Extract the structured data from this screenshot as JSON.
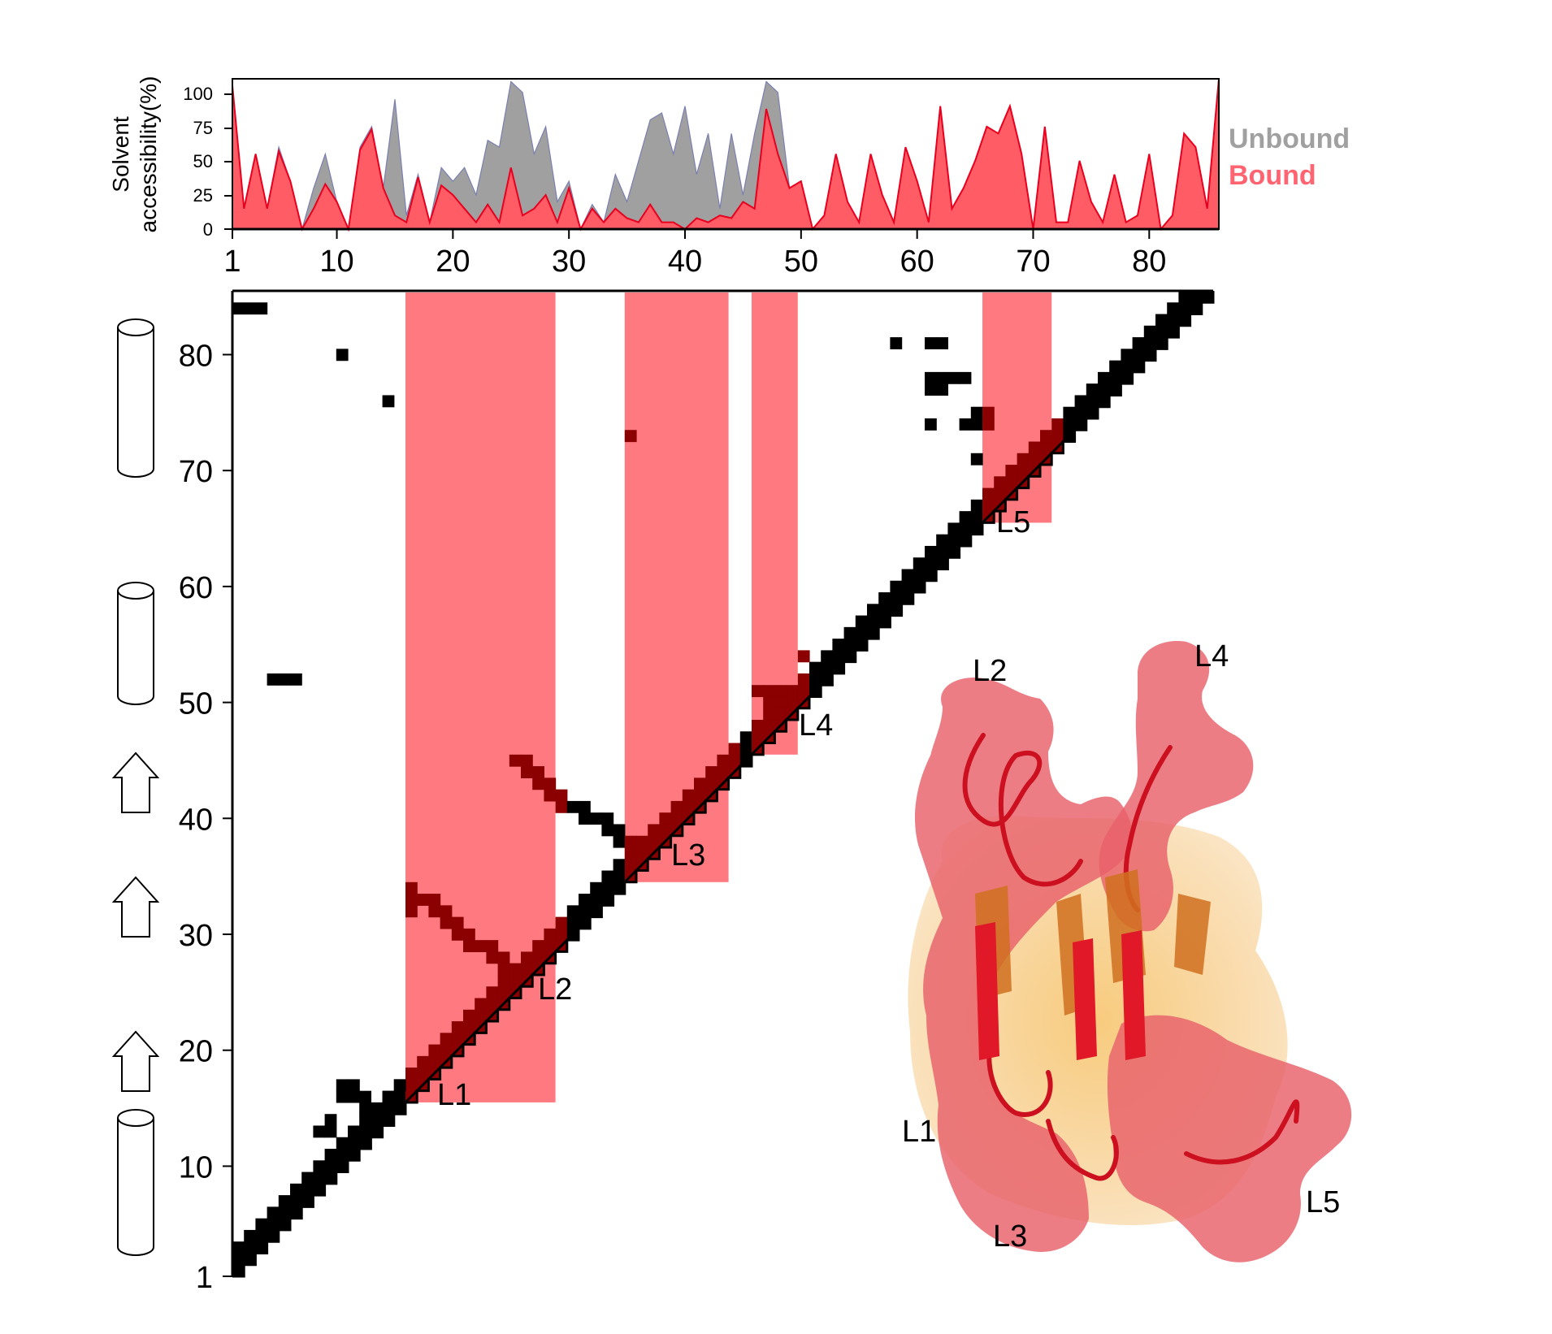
{
  "accessibility_panel": {
    "ylabel_line1": "Solvent",
    "ylabel_line2": "accessibility(%)",
    "yticks": [
      "100",
      "75",
      "50",
      "25",
      "0"
    ],
    "xticks": [
      "1",
      "10",
      "20",
      "30",
      "40",
      "50",
      "60",
      "70",
      "80"
    ],
    "legend": [
      {
        "label": "Unbound",
        "color": "#a0a0a0"
      },
      {
        "label": "Bound",
        "color": "#ff6470"
      }
    ]
  },
  "contact_map": {
    "yticks": [
      "1",
      "10",
      "20",
      "30",
      "40",
      "50",
      "60",
      "70",
      "80"
    ],
    "loop_labels": [
      "L1",
      "L2",
      "L3",
      "L4",
      "L5"
    ],
    "highlight_color": "#ff7a80",
    "contact_color": "#000000",
    "bound_contact_color": "#8b0000"
  },
  "secondary_structure": [
    {
      "type": "helix",
      "residues": "1-13"
    },
    {
      "type": "strand",
      "residues": "17-20"
    },
    {
      "type": "strand",
      "residues": "29-32"
    },
    {
      "type": "strand",
      "residues": "39-42"
    },
    {
      "type": "helix",
      "residues": "50-61"
    },
    {
      "type": "helix",
      "residues": "70-84"
    }
  ],
  "structure_panel": {
    "loop_labels": [
      "L2",
      "L4",
      "L1",
      "L5",
      "L3"
    ],
    "surface_color": "#e8606a",
    "core_color": "#f2b050"
  },
  "chart_data": {
    "type": "area",
    "x_range": [
      1,
      86
    ],
    "ylim": [
      0,
      110
    ],
    "series": [
      {
        "name": "Unbound",
        "color": "#a0a0a0",
        "points": [
          [
            1,
            105
          ],
          [
            2,
            15
          ],
          [
            3,
            55
          ],
          [
            4,
            15
          ],
          [
            5,
            60
          ],
          [
            6,
            35
          ],
          [
            7,
            0
          ],
          [
            8,
            30
          ],
          [
            9,
            55
          ],
          [
            10,
            20
          ],
          [
            11,
            0
          ],
          [
            12,
            60
          ],
          [
            13,
            75
          ],
          [
            14,
            30
          ],
          [
            15,
            95
          ],
          [
            16,
            10
          ],
          [
            17,
            40
          ],
          [
            18,
            5
          ],
          [
            19,
            45
          ],
          [
            20,
            35
          ],
          [
            21,
            45
          ],
          [
            22,
            25
          ],
          [
            23,
            65
          ],
          [
            24,
            60
          ],
          [
            25,
            108
          ],
          [
            26,
            100
          ],
          [
            27,
            55
          ],
          [
            28,
            75
          ],
          [
            29,
            20
          ],
          [
            30,
            35
          ],
          [
            31,
            0
          ],
          [
            32,
            18
          ],
          [
            33,
            5
          ],
          [
            34,
            40
          ],
          [
            35,
            20
          ],
          [
            36,
            50
          ],
          [
            37,
            80
          ],
          [
            38,
            85
          ],
          [
            39,
            55
          ],
          [
            40,
            90
          ],
          [
            41,
            40
          ],
          [
            42,
            70
          ],
          [
            43,
            15
          ],
          [
            44,
            70
          ],
          [
            45,
            25
          ],
          [
            46,
            70
          ],
          [
            47,
            108
          ],
          [
            48,
            100
          ],
          [
            49,
            30
          ],
          [
            50,
            35
          ],
          [
            51,
            0
          ],
          [
            52,
            10
          ],
          [
            53,
            55
          ],
          [
            54,
            20
          ],
          [
            55,
            5
          ],
          [
            56,
            55
          ],
          [
            57,
            25
          ],
          [
            58,
            5
          ],
          [
            59,
            60
          ],
          [
            60,
            35
          ],
          [
            61,
            5
          ],
          [
            62,
            90
          ],
          [
            63,
            15
          ],
          [
            64,
            30
          ],
          [
            65,
            50
          ],
          [
            66,
            75
          ],
          [
            67,
            70
          ],
          [
            68,
            90
          ],
          [
            69,
            55
          ],
          [
            70,
            0
          ],
          [
            71,
            75
          ],
          [
            72,
            5
          ],
          [
            73,
            5
          ],
          [
            74,
            50
          ],
          [
            75,
            20
          ],
          [
            76,
            5
          ],
          [
            77,
            40
          ],
          [
            78,
            5
          ],
          [
            79,
            10
          ],
          [
            80,
            55
          ],
          [
            81,
            0
          ],
          [
            82,
            10
          ],
          [
            83,
            70
          ],
          [
            84,
            60
          ],
          [
            85,
            15
          ],
          [
            86,
            110
          ]
        ]
      },
      {
        "name": "Bound",
        "color": "#ff6470",
        "points": [
          [
            1,
            105
          ],
          [
            2,
            15
          ],
          [
            3,
            55
          ],
          [
            4,
            15
          ],
          [
            5,
            57
          ],
          [
            6,
            35
          ],
          [
            7,
            0
          ],
          [
            8,
            15
          ],
          [
            9,
            33
          ],
          [
            10,
            20
          ],
          [
            11,
            0
          ],
          [
            12,
            58
          ],
          [
            13,
            73
          ],
          [
            14,
            30
          ],
          [
            15,
            10
          ],
          [
            16,
            5
          ],
          [
            17,
            38
          ],
          [
            18,
            5
          ],
          [
            19,
            32
          ],
          [
            20,
            25
          ],
          [
            21,
            15
          ],
          [
            22,
            5
          ],
          [
            23,
            18
          ],
          [
            24,
            5
          ],
          [
            25,
            45
          ],
          [
            26,
            10
          ],
          [
            27,
            15
          ],
          [
            28,
            25
          ],
          [
            29,
            5
          ],
          [
            30,
            30
          ],
          [
            31,
            0
          ],
          [
            32,
            15
          ],
          [
            33,
            5
          ],
          [
            34,
            15
          ],
          [
            35,
            8
          ],
          [
            36,
            5
          ],
          [
            37,
            18
          ],
          [
            38,
            5
          ],
          [
            39,
            5
          ],
          [
            40,
            0
          ],
          [
            41,
            8
          ],
          [
            42,
            5
          ],
          [
            43,
            10
          ],
          [
            44,
            8
          ],
          [
            45,
            20
          ],
          [
            46,
            15
          ],
          [
            47,
            88
          ],
          [
            48,
            55
          ],
          [
            49,
            30
          ],
          [
            50,
            35
          ],
          [
            51,
            0
          ],
          [
            52,
            10
          ],
          [
            53,
            55
          ],
          [
            54,
            20
          ],
          [
            55,
            5
          ],
          [
            56,
            55
          ],
          [
            57,
            25
          ],
          [
            58,
            5
          ],
          [
            59,
            60
          ],
          [
            60,
            35
          ],
          [
            61,
            5
          ],
          [
            62,
            90
          ],
          [
            63,
            15
          ],
          [
            64,
            30
          ],
          [
            65,
            50
          ],
          [
            66,
            75
          ],
          [
            67,
            70
          ],
          [
            68,
            90
          ],
          [
            69,
            55
          ],
          [
            70,
            0
          ],
          [
            71,
            75
          ],
          [
            72,
            5
          ],
          [
            73,
            5
          ],
          [
            74,
            50
          ],
          [
            75,
            20
          ],
          [
            76,
            5
          ],
          [
            77,
            40
          ],
          [
            78,
            5
          ],
          [
            79,
            10
          ],
          [
            80,
            55
          ],
          [
            81,
            0
          ],
          [
            82,
            10
          ],
          [
            83,
            70
          ],
          [
            84,
            60
          ],
          [
            85,
            15
          ],
          [
            86,
            110
          ]
        ]
      }
    ],
    "highlight_regions": [
      [
        16,
        28
      ],
      [
        35,
        43
      ],
      [
        46,
        49
      ],
      [
        66,
        71
      ]
    ],
    "off_diagonal_contacts": [
      [
        1,
        84
      ],
      [
        2,
        84
      ],
      [
        3,
        84
      ],
      [
        10,
        80
      ],
      [
        14,
        76
      ],
      [
        35,
        73
      ],
      [
        4,
        52
      ],
      [
        5,
        52
      ],
      [
        6,
        52
      ],
      [
        58,
        81
      ],
      [
        61,
        81
      ],
      [
        62,
        81
      ],
      [
        61,
        78
      ],
      [
        62,
        78
      ],
      [
        63,
        78
      ],
      [
        64,
        78
      ],
      [
        61,
        77
      ],
      [
        62,
        77
      ],
      [
        61,
        74
      ],
      [
        64,
        74
      ],
      [
        65,
        75
      ],
      [
        66,
        75
      ],
      [
        65,
        74
      ],
      [
        66,
        74
      ],
      [
        65,
        71
      ],
      [
        25,
        45
      ],
      [
        26,
        45
      ],
      [
        26,
        44
      ],
      [
        27,
        44
      ],
      [
        27,
        43
      ],
      [
        28,
        43
      ],
      [
        28,
        42
      ],
      [
        29,
        42
      ],
      [
        29,
        41
      ],
      [
        30,
        41
      ],
      [
        31,
        41
      ],
      [
        31,
        40
      ],
      [
        32,
        40
      ],
      [
        33,
        40
      ],
      [
        33,
        39
      ],
      [
        34,
        39
      ],
      [
        34,
        38
      ],
      [
        35,
        38
      ],
      [
        16,
        34
      ],
      [
        16,
        33
      ],
      [
        16,
        32
      ],
      [
        17,
        33
      ],
      [
        18,
        33
      ],
      [
        18,
        32
      ],
      [
        19,
        32
      ],
      [
        19,
        31
      ],
      [
        20,
        31
      ],
      [
        20,
        30
      ],
      [
        21,
        30
      ],
      [
        21,
        29
      ],
      [
        22,
        29
      ],
      [
        23,
        29
      ],
      [
        23,
        28
      ],
      [
        24,
        28
      ],
      [
        24,
        27
      ],
      [
        25,
        27
      ],
      [
        26,
        27
      ],
      [
        26,
        26
      ],
      [
        46,
        51
      ],
      [
        47,
        51
      ],
      [
        48,
        51
      ],
      [
        47,
        50
      ],
      [
        48,
        50
      ],
      [
        48,
        49
      ],
      [
        49,
        49
      ],
      [
        50,
        54
      ],
      [
        8,
        13
      ],
      [
        10,
        17
      ],
      [
        11,
        17
      ],
      [
        10,
        16
      ],
      [
        11,
        16
      ],
      [
        12,
        16
      ],
      [
        12,
        15
      ],
      [
        13,
        15
      ],
      [
        13,
        14
      ],
      [
        14,
        16
      ],
      [
        15,
        17
      ],
      [
        16,
        18
      ],
      [
        9,
        13
      ],
      [
        9,
        14
      ]
    ]
  }
}
